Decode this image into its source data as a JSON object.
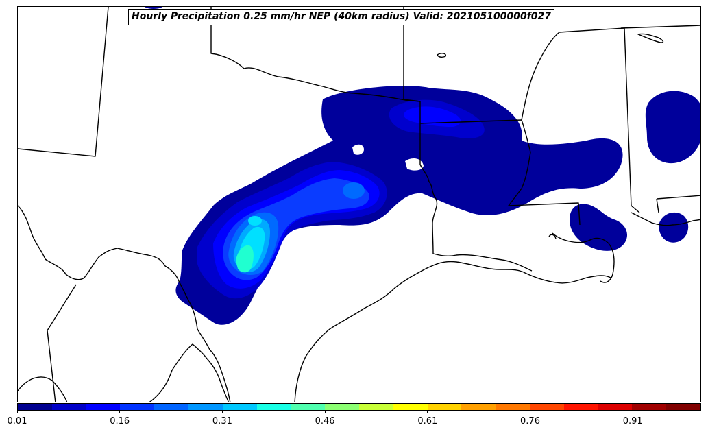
{
  "title": "Hourly Precipitation 0.25 mm/hr NEP (40km radius) Valid: 202105100000f027",
  "colorbar": {
    "min": 0.01,
    "max": 1.01,
    "tick_labels": [
      "0.01",
      "0.16",
      "0.31",
      "0.46",
      "0.61",
      "0.76",
      "0.91"
    ],
    "colors": [
      "#00008f",
      "#0000c8",
      "#0000ff",
      "#0032ff",
      "#0064ff",
      "#0096ff",
      "#00c8ff",
      "#19ffe6",
      "#50ffaf",
      "#8cff73",
      "#c8ff37",
      "#ffff00",
      "#ffd200",
      "#ffa000",
      "#ff7800",
      "#ff4600",
      "#ff1400",
      "#dc0000",
      "#a00000",
      "#800000"
    ]
  },
  "legend_colors": {
    "level_1": "#00009b",
    "level_2": "#0000cd",
    "level_3": "#0000ff",
    "level_4": "#0a3cff",
    "level_5": "#006aff",
    "level_6": "#00aaff",
    "level_7": "#00e0ff",
    "level_8": "#20ffd0"
  }
}
